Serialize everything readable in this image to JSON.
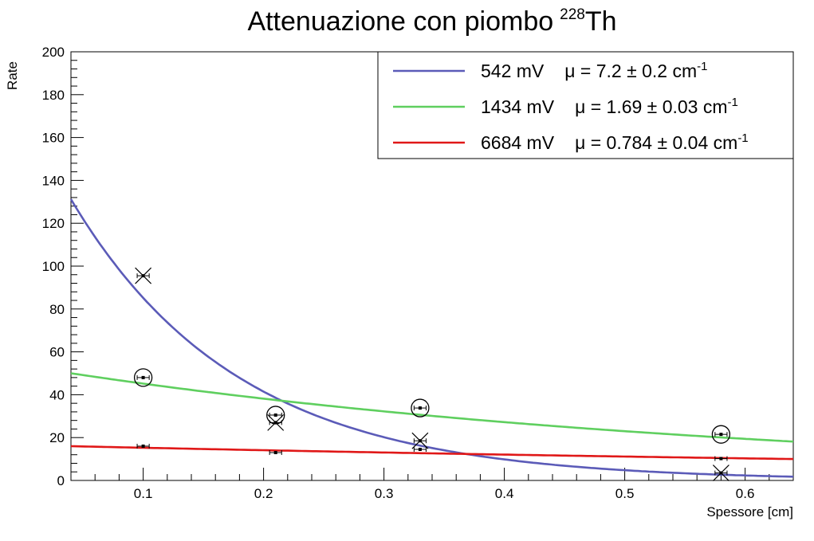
{
  "chart_data": {
    "type": "scatter",
    "title": "Attenuazione con piombo",
    "title_sup": "228",
    "title_suffix": "Th",
    "xlabel": "Spessore [cm]",
    "ylabel": "Rate",
    "xlim": [
      0.04,
      0.64
    ],
    "ylim": [
      0,
      200
    ],
    "x_ticks": [
      0.1,
      0.2,
      0.3,
      0.4,
      0.5,
      0.6
    ],
    "x_tick_labels": [
      "0.1",
      "0.2",
      "0.3",
      "0.4",
      "0.5",
      "0.6"
    ],
    "y_ticks": [
      0,
      20,
      40,
      60,
      80,
      100,
      120,
      140,
      160,
      180,
      200
    ],
    "y_tick_labels": [
      "0",
      "20",
      "40",
      "60",
      "80",
      "100",
      "120",
      "140",
      "160",
      "180",
      "200"
    ],
    "grid": false,
    "legend_position": "top-right",
    "series": [
      {
        "name": "542 mV",
        "mu_label": "μ = 7.2 ± 0.2 cm",
        "mu_sup": "-1",
        "color": "#5b5bb8",
        "marker": "cross",
        "fit": {
          "A": 175,
          "mu": 7.2
        },
        "points": [
          {
            "x": 0.1,
            "y": 95.5,
            "xerr": 0.005
          },
          {
            "x": 0.21,
            "y": 27,
            "xerr": 0.005
          },
          {
            "x": 0.33,
            "y": 18.5,
            "xerr": 0.005
          },
          {
            "x": 0.58,
            "y": 3.5,
            "xerr": 0.005
          }
        ]
      },
      {
        "name": "1434 mV",
        "mu_label": "μ = 1.69 ± 0.03 cm",
        "mu_sup": "-1",
        "color": "#5fcf5f",
        "marker": "circle",
        "fit": {
          "A": 53.5,
          "mu": 1.69
        },
        "points": [
          {
            "x": 0.1,
            "y": 48,
            "xerr": 0.005
          },
          {
            "x": 0.21,
            "y": 30.5,
            "xerr": 0.005
          },
          {
            "x": 0.33,
            "y": 33.8,
            "xerr": 0.005
          },
          {
            "x": 0.58,
            "y": 21.5,
            "xerr": 0.005
          }
        ]
      },
      {
        "name": "6684 mV",
        "mu_label": "μ = 0.784 ± 0.04 cm",
        "mu_sup": "-1",
        "color": "#e01818",
        "marker": "point",
        "fit": {
          "A": 16.5,
          "mu": 0.784
        },
        "points": [
          {
            "x": 0.1,
            "y": 16,
            "xerr": 0.005
          },
          {
            "x": 0.21,
            "y": 13,
            "xerr": 0.005
          },
          {
            "x": 0.33,
            "y": 14.5,
            "xerr": 0.005
          },
          {
            "x": 0.58,
            "y": 10.2,
            "xerr": 0.005
          }
        ]
      }
    ]
  }
}
